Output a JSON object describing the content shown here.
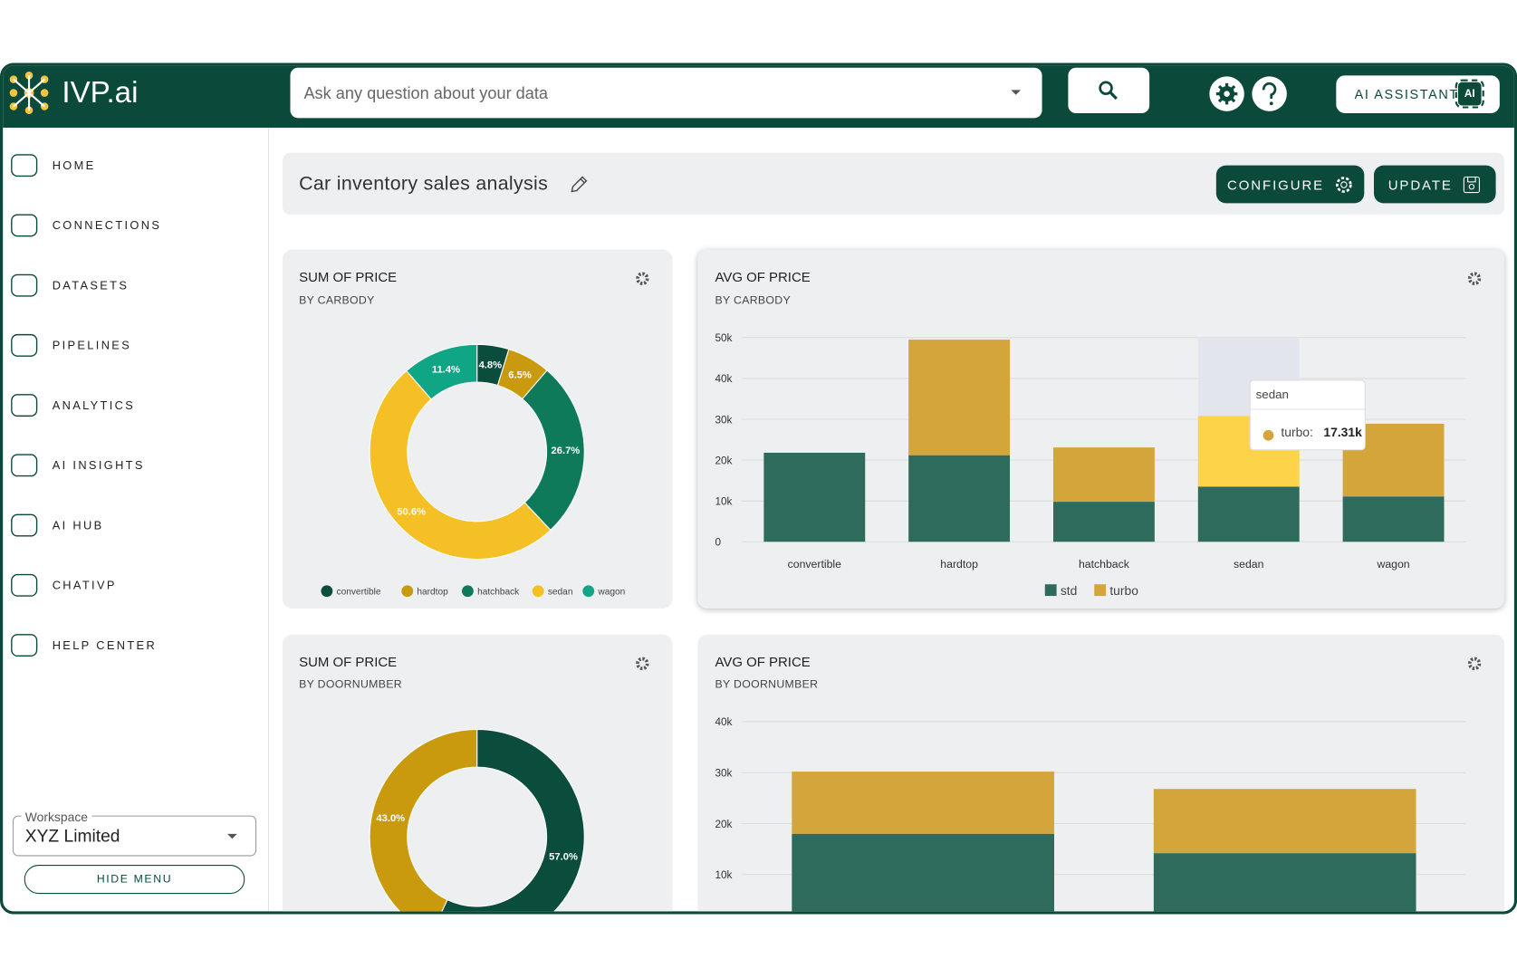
{
  "header": {
    "logo": "IVP.ai",
    "search_placeholder": "Ask any question about your data",
    "assistant_button": "AI ASSISTANT",
    "assistant_badge": "AI"
  },
  "sidebar": {
    "menu": [
      "HOME",
      "CONNECTIONS",
      "DATASETS",
      "PIPELINES",
      "ANALYTICS",
      "AI INSIGHTS",
      "AI HUB",
      "CHATIVP",
      "HELP CENTER"
    ],
    "workspace_label": "Workspace",
    "workspace_value": "XYZ Limited",
    "hide_menu": "HIDE MENU"
  },
  "dashboard": {
    "title": "Car inventory sales analysis",
    "configure": "CONFIGURE",
    "update": "UPDATE"
  },
  "charts": [
    {
      "type": "pie",
      "donut": true,
      "title": "SUM OF PRICE",
      "subtitle": "BY CARBODY",
      "categories": [
        "convertible",
        "hardtop",
        "hatchback",
        "sedan",
        "wagon"
      ],
      "values": [
        4.8,
        6.5,
        26.7,
        50.6,
        11.4
      ],
      "value_labels": [
        "4.8%",
        "6.5%",
        "26.7%",
        "50.6%",
        "11.4%"
      ],
      "colors": [
        "#0b4d3c",
        "#c99a0e",
        "#0e7a5a",
        "#f5bf26",
        "#10a585"
      ],
      "legend": "bottom"
    },
    {
      "type": "bar",
      "stacked": true,
      "title": "AVG OF PRICE",
      "subtitle": "BY CARBODY",
      "categories": [
        "convertible",
        "hardtop",
        "hatchback",
        "sedan",
        "wagon"
      ],
      "series": [
        {
          "name": "std",
          "color": "#2f6b5c",
          "values": [
            21800,
            21200,
            9800,
            13500,
            11100
          ]
        },
        {
          "name": "turbo",
          "color": "#d4a53a",
          "values": [
            null,
            28300,
            13300,
            17310,
            17800
          ]
        }
      ],
      "ylim": [
        0,
        50000
      ],
      "yticks": [
        0,
        {
          "value": 10000,
          "label": "10k"
        },
        {
          "value": 20000,
          "label": "20k"
        },
        {
          "value": 30000,
          "label": "30k"
        },
        {
          "value": 40000,
          "label": "40k"
        },
        {
          "value": 50000,
          "label": "50k"
        }
      ],
      "grid": true,
      "legend": "bottom",
      "tooltip": {
        "category": "sedan",
        "series_label": "turbo:",
        "value_label": "17.31k",
        "highlight_color": "#fdd34a"
      }
    },
    {
      "type": "pie",
      "donut": true,
      "title": "SUM OF PRICE",
      "subtitle": "BY DOORNUMBER",
      "values": [
        57.0,
        43.0
      ],
      "value_labels": [
        "57.0%",
        "43.0%"
      ],
      "colors": [
        "#0b4d3c",
        "#c99a0e"
      ]
    },
    {
      "type": "bar",
      "stacked": true,
      "title": "AVG OF PRICE",
      "subtitle": "BY DOORNUMBER",
      "series": [
        {
          "color": "#2f6b5c",
          "values": [
            18000,
            14200
          ]
        },
        {
          "color": "#d4a53a",
          "values": [
            12200,
            12600
          ]
        }
      ],
      "ylim": [
        0,
        40000
      ],
      "yticks": [
        {
          "value": 10000,
          "label": "10k"
        },
        {
          "value": 20000,
          "label": "20k"
        },
        {
          "value": 30000,
          "label": "30k"
        },
        {
          "value": 40000,
          "label": "40k"
        }
      ],
      "grid": true
    }
  ]
}
